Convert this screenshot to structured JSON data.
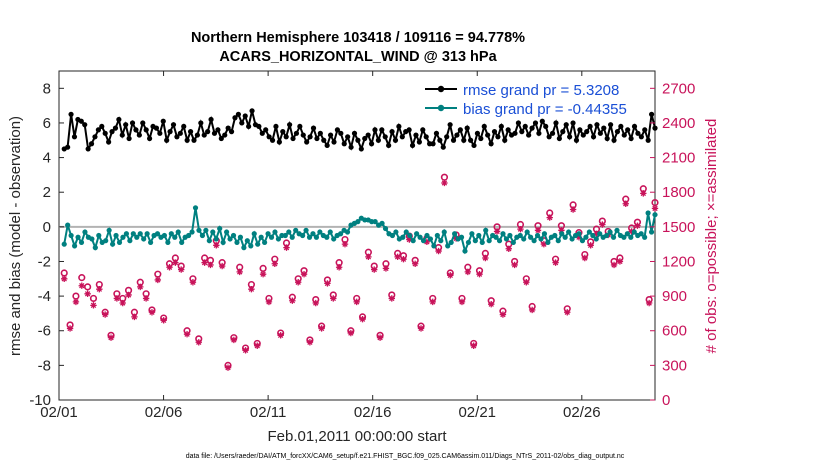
{
  "chart_data": {
    "type": "line",
    "title_line1": "Northern Hemisphere 103418 / 109116 = 94.778%",
    "title_line2": "ACARS_HORIZONTAL_WIND @ 313 hPa",
    "xlabel": "Feb.01,2011 00:00:00 start",
    "ylabel": "rmse and bias (model - observation)",
    "ylabel_right": "# of obs: o=possible; ×=assimilated",
    "footnote": "data file: /Users/raeder/DAI/ATM_forcXX/CAM6_setup/f.e21.FHIST_BGC.f09_025.CAM6assim.011/Diags_NTrS_2011-02/obs_diag_output.nc",
    "x_ticks": [
      "02/01",
      "02/06",
      "02/11",
      "02/16",
      "02/21",
      "02/26"
    ],
    "x_tick_days": [
      0,
      5,
      10,
      15,
      20,
      25
    ],
    "xlim": [
      0,
      28.5
    ],
    "ylim": [
      -10,
      9
    ],
    "y_ticks": [
      "8",
      "6",
      "4",
      "2",
      "0",
      "-2",
      "-4",
      "-6",
      "-8",
      "-10"
    ],
    "y_tick_values": [
      8,
      6,
      4,
      2,
      0,
      -2,
      -4,
      -6,
      -8,
      -10
    ],
    "ylim_right": [
      0,
      2850
    ],
    "y_ticks_right": [
      "2700",
      "2400",
      "2100",
      "1800",
      "1500",
      "1200",
      "900",
      "600",
      "300",
      "0"
    ],
    "y_tick_values_right": [
      2700,
      2400,
      2100,
      1800,
      1500,
      1200,
      900,
      600,
      300,
      0
    ],
    "zero_line": 0,
    "series": [
      {
        "name": "rmse grand pr = 5.3208",
        "color": "#000000",
        "marker": "dot",
        "values": [
          4.5,
          4.6,
          6.5,
          5.2,
          6.2,
          6.1,
          5.9,
          4.5,
          4.8,
          5.2,
          5.6,
          5.8,
          5.4,
          4.9,
          5.5,
          5.7,
          6.2,
          5.3,
          5.9,
          5.1,
          6.0,
          5.6,
          5.3,
          6.0,
          5.6,
          5.1,
          5.8,
          5.7,
          5.4,
          6.1,
          5.0,
          5.5,
          5.9,
          5.2,
          5.4,
          5.8,
          5.0,
          5.5,
          5.0,
          5.3,
          6.0,
          5.3,
          5.5,
          6.2,
          5.4,
          5.6,
          5.1,
          5.3,
          5.7,
          5.5,
          6.3,
          6.5,
          6.0,
          6.4,
          5.8,
          6.7,
          5.9,
          5.8,
          5.4,
          5.6,
          5.2,
          5.0,
          5.8,
          4.9,
          5.5,
          5.2,
          5.9,
          5.1,
          5.4,
          5.8,
          5.3,
          4.9,
          5.2,
          5.7,
          5.1,
          5.4,
          5.0,
          4.7,
          5.3,
          4.9,
          5.6,
          5.4,
          4.8,
          5.2,
          4.6,
          5.4,
          5.0,
          4.5,
          5.1,
          5.3,
          4.8,
          5.6,
          5.0,
          5.6,
          5.2,
          4.7,
          5.5,
          5.0,
          5.8,
          5.2,
          5.5,
          5.6,
          4.7,
          5.3,
          4.9,
          5.6,
          5.2,
          4.8,
          4.8,
          5.4,
          5.0,
          4.6,
          5.2,
          5.9,
          5.0,
          5.3,
          5.6,
          5.0,
          5.7,
          5.0,
          4.7,
          5.4,
          5.1,
          5.8,
          5.3,
          4.8,
          5.5,
          5.2,
          5.8,
          5.0,
          5.6,
          5.3,
          5.4,
          6.0,
          5.5,
          5.8,
          5.3,
          5.7,
          6.0,
          5.4,
          6.1,
          5.8,
          5.2,
          5.4,
          6.0,
          5.1,
          5.5,
          5.9,
          5.2,
          6.0,
          5.0,
          5.6,
          5.3,
          5.5,
          5.8,
          5.2,
          5.9,
          5.4,
          5.7,
          5.1,
          5.9,
          5.0,
          5.5,
          5.8,
          5.3,
          5.6,
          5.1,
          5.8,
          5.4,
          5.2,
          5.6,
          5.0,
          6.5,
          5.7
        ]
      },
      {
        "name": "bias grand pr = -0.44355",
        "color": "#008080",
        "marker": "dot",
        "values": [
          -1.0,
          0.1,
          -0.5,
          -1.1,
          -0.6,
          -0.9,
          -0.3,
          -0.6,
          -0.7,
          -1.2,
          -0.5,
          -0.9,
          -0.8,
          -0.2,
          -1.0,
          -0.5,
          -0.9,
          -0.6,
          -0.4,
          -0.8,
          -0.4,
          -0.6,
          -0.4,
          -0.7,
          -0.4,
          -0.9,
          -0.5,
          -0.4,
          -0.6,
          -0.5,
          -0.9,
          -0.4,
          -0.6,
          -0.3,
          -0.9,
          -0.6,
          -0.5,
          -0.3,
          1.1,
          -0.2,
          -0.5,
          -0.2,
          -0.8,
          -0.3,
          -0.7,
          -0.1,
          -0.9,
          -0.3,
          -0.7,
          -0.5,
          -0.9,
          -0.6,
          -1.2,
          -0.8,
          -1.1,
          -0.4,
          -1.0,
          -0.6,
          -0.9,
          -0.4,
          -0.6,
          -0.3,
          -0.7,
          -0.5,
          -0.5,
          -0.3,
          -0.6,
          -0.2,
          -0.4,
          -0.5,
          -0.2,
          -0.6,
          -0.4,
          -0.6,
          -0.3,
          -0.5,
          -0.6,
          -0.3,
          -0.7,
          -0.5,
          -0.4,
          -0.2,
          -0.3,
          0.1,
          0.2,
          0.3,
          0.5,
          0.4,
          0.4,
          0.3,
          0.3,
          0.1,
          0.2,
          -0.1,
          -0.4,
          -0.5,
          -0.3,
          -0.7,
          -0.6,
          -0.3,
          -0.5,
          -0.8,
          -0.4,
          -0.6,
          -0.8,
          -0.5,
          -0.7,
          -1.1,
          -0.5,
          -0.8,
          -0.3,
          -1.1,
          -0.9,
          -0.4,
          -0.7,
          -0.6,
          -1.4,
          -0.9,
          -0.4,
          -0.8,
          -0.5,
          -0.9,
          -0.2,
          -0.8,
          -0.5,
          -0.6,
          -0.8,
          -0.4,
          -0.7,
          -0.5,
          -0.9,
          -0.6,
          -0.5,
          -0.7,
          -0.3,
          -0.6,
          -0.8,
          -0.5,
          -0.7,
          -0.4,
          -0.9,
          -0.6,
          -0.5,
          -0.8,
          -0.4,
          -0.6,
          -0.3,
          -0.7,
          -0.5,
          -0.4,
          -0.8,
          -0.6,
          -0.3,
          -0.5,
          -0.7,
          -0.4,
          -0.6,
          -0.5,
          -0.3,
          -0.6,
          -0.2,
          -0.5,
          -0.6,
          -0.4,
          -0.6,
          -0.3,
          -0.5,
          -0.4,
          -0.6,
          0.8,
          -0.3,
          0.7
        ]
      },
      {
        "name": "possible",
        "color": "#c8135a",
        "marker": "circle",
        "values": [
          1100,
          650,
          900,
          1060,
          980,
          880,
          1000,
          760,
          560,
          920,
          880,
          950,
          760,
          1020,
          920,
          780,
          1090,
          710,
          1180,
          1230,
          1160,
          600,
          1050,
          530,
          1230,
          1210,
          1380,
          1190,
          300,
          540,
          1150,
          450,
          1000,
          490,
          1140,
          880,
          1220,
          580,
          1360,
          890,
          1050,
          1120,
          520,
          870,
          640,
          1040,
          910,
          1190,
          1390,
          600,
          880,
          720,
          1280,
          1160,
          560,
          1180,
          910,
          1270,
          1250,
          1420,
          1210,
          640,
          1400,
          880,
          1320,
          1930,
          1100,
          1430,
          880,
          1150,
          490,
          1120,
          1270,
          860,
          1500,
          770,
          1350,
          1200,
          1520,
          1050,
          810,
          1510,
          1380,
          1620,
          1220,
          1510,
          790,
          1690,
          1450,
          1260,
          1370,
          1480,
          1550,
          1460,
          1200,
          1230,
          1740,
          1490,
          1540,
          1830,
          870,
          1710
        ]
      },
      {
        "name": "assimilated",
        "color": "#c8135a",
        "marker": "star",
        "values": [
          1050,
          620,
          850,
          990,
          920,
          820,
          960,
          740,
          540,
          880,
          840,
          910,
          720,
          980,
          880,
          760,
          1040,
          690,
          1150,
          1190,
          1130,
          570,
          1020,
          500,
          1190,
          1170,
          1340,
          1160,
          280,
          520,
          1110,
          430,
          960,
          470,
          1090,
          850,
          1180,
          560,
          1320,
          860,
          1020,
          1090,
          500,
          840,
          620,
          1010,
          880,
          1150,
          1350,
          580,
          850,
          700,
          1240,
          1130,
          540,
          1140,
          880,
          1240,
          1220,
          1390,
          1180,
          620,
          1370,
          850,
          1290,
          1880,
          1080,
          1400,
          850,
          1110,
          470,
          1090,
          1230,
          830,
          1460,
          740,
          1310,
          1170,
          1480,
          1020,
          780,
          1470,
          1350,
          1580,
          1190,
          1470,
          760,
          1650,
          1410,
          1230,
          1340,
          1440,
          1520,
          1430,
          1170,
          1200,
          1700,
          1460,
          1510,
          1790,
          840,
          1660
        ]
      }
    ],
    "legend_placement": "top-right",
    "grid": false
  }
}
